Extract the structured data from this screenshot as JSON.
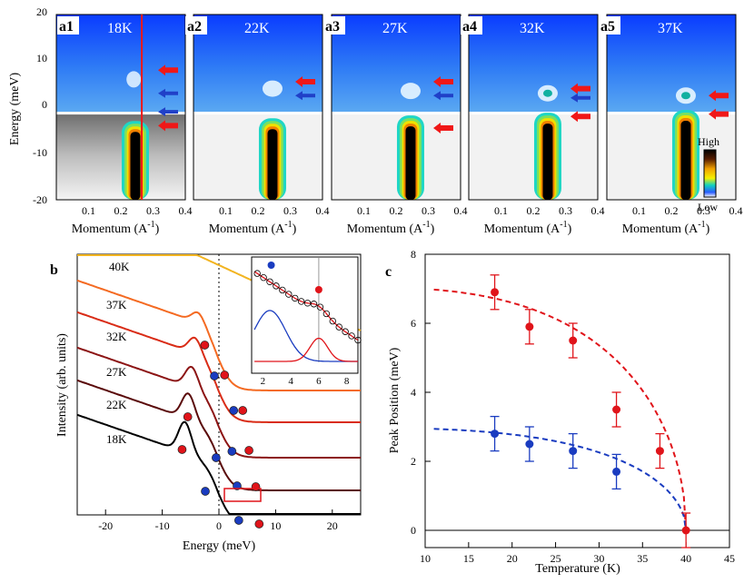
{
  "chart_data": [
    {
      "type": "heatmap",
      "panels": [
        {
          "letter": "a1",
          "temp": "18K",
          "red_arrows_meV": [
            8,
            -4
          ],
          "blue_arrows_meV": [
            3,
            -1
          ]
        },
        {
          "letter": "a2",
          "temp": "22K",
          "red_arrows_meV": [
            5.5
          ],
          "blue_arrows_meV": [
            2.5
          ]
        },
        {
          "letter": "a3",
          "temp": "27K",
          "red_arrows_meV": [
            5.5,
            -4.5
          ],
          "blue_arrows_meV": [
            2.5
          ]
        },
        {
          "letter": "a4",
          "temp": "32K",
          "red_arrows_meV": [
            4,
            -2
          ],
          "blue_arrows_meV": [
            2
          ]
        },
        {
          "letter": "a5",
          "temp": "37K",
          "red_arrows_meV": [
            2.5,
            -1.5
          ],
          "blue_arrows_meV": []
        }
      ],
      "ylabel": "Energy (meV)",
      "ylim": [
        -20,
        20
      ],
      "yticks": [
        "20",
        "10",
        "0",
        "-10",
        "-20"
      ],
      "xlabel": "Momentum (A",
      "xlabel_sup": "-1",
      "xlabel_close": ")",
      "xticks": [
        "0.1",
        "0.2",
        "0.3",
        "0.4"
      ],
      "xlim": [
        0,
        0.4
      ],
      "colorbar": {
        "high": "High",
        "low": "Low"
      }
    },
    {
      "type": "line",
      "label": "b",
      "xlabel": "Energy (meV)",
      "ylabel": "Intensity (arb. units)",
      "xlim": [
        -25,
        25
      ],
      "xticks": [
        "-20",
        "-10",
        "0",
        "10",
        "20"
      ],
      "series": [
        {
          "name": "18K",
          "color": "#000000"
        },
        {
          "name": "22K",
          "color": "#5a0a0a"
        },
        {
          "name": "27K",
          "color": "#8c1414"
        },
        {
          "name": "32K",
          "color": "#d92c16"
        },
        {
          "name": "37K",
          "color": "#f46a22"
        },
        {
          "name": "40K",
          "color": "#f2b420"
        }
      ],
      "inset": {
        "xticks": [
          "2",
          "4",
          "6",
          "8"
        ]
      }
    },
    {
      "type": "scatter",
      "label": "c",
      "xlabel": "Temperature (K)",
      "ylabel": "Peak Position (meV)",
      "xlim": [
        10,
        45
      ],
      "ylim": [
        -0.5,
        8
      ],
      "xticks": [
        "10",
        "15",
        "20",
        "25",
        "30",
        "35",
        "40",
        "45"
      ],
      "yticks": [
        "0",
        "2",
        "4",
        "6",
        "8"
      ],
      "series": [
        {
          "name": "red",
          "color": "#e0141a",
          "x": [
            18,
            22,
            27,
            32,
            37,
            40
          ],
          "y": [
            6.9,
            5.9,
            5.5,
            3.5,
            2.3,
            0
          ],
          "err": [
            0.5,
            0.5,
            0.5,
            0.5,
            0.5,
            0.5
          ]
        },
        {
          "name": "blue",
          "color": "#1a3cc0",
          "x": [
            18,
            22,
            27,
            32
          ],
          "y": [
            2.8,
            2.5,
            2.3,
            1.7
          ],
          "err": [
            0.5,
            0.5,
            0.5,
            0.5
          ]
        }
      ]
    }
  ]
}
